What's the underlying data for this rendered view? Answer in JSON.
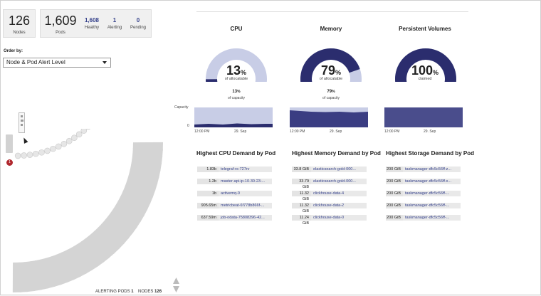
{
  "stats": {
    "nodes": {
      "value": "126",
      "label": "Nodes"
    },
    "pods": {
      "value": "1,609",
      "label": "Pods"
    },
    "healthy": {
      "value": "1,608",
      "label": "Healthy"
    },
    "alerting": {
      "value": "1",
      "label": "Alerting"
    },
    "pending": {
      "value": "0",
      "label": "Pending"
    }
  },
  "order": {
    "label": "Order by:",
    "selected": "Node & Pod Alert Level"
  },
  "gauges": [
    {
      "title": "CPU",
      "value": "13",
      "unit": "%",
      "sublabel": "of allocatable",
      "fraction": 0.13,
      "capacity_value": "13",
      "capacity_unit": "%",
      "capacity_label": "of capacity"
    },
    {
      "title": "Memory",
      "value": "79",
      "unit": "%",
      "sublabel": "of allocatable",
      "fraction": 0.79,
      "capacity_value": "79",
      "capacity_unit": "%",
      "capacity_label": "of capacity"
    },
    {
      "title": "Persistent Volumes",
      "value": "100",
      "unit": "%",
      "sublabel": "claimed",
      "fraction": 1.0
    }
  ],
  "sparklines": {
    "y_label": "Capacity",
    "y_zero": "0",
    "x_ticks": [
      "12:00 PM",
      "29. Sep"
    ]
  },
  "demand": {
    "cpu": {
      "title": "Highest CPU Demand by Pod",
      "rows": [
        {
          "value": "1.83b",
          "name": "telegraf-rs-727rv"
        },
        {
          "value": "1.2b",
          "name": "master-api-ip-10-30-23-..."
        },
        {
          "value": "1b",
          "name": "activemq-0"
        },
        {
          "value": "905.65m",
          "name": "metricbeat-6f778b866f-..."
        },
        {
          "value": "637.59m",
          "name": "job-odata-75808396-42..."
        }
      ]
    },
    "memory": {
      "title": "Highest Memory Demand by Pod",
      "rows": [
        {
          "value": "33.8 GiB",
          "name": "elasticsearch-gold-000..."
        },
        {
          "value": "33.79 GiB",
          "name": "elasticsearch-gold-000..."
        },
        {
          "value": "11.32 GiB",
          "name": "clickhouse-data-4"
        },
        {
          "value": "11.32 GiB",
          "name": "clickhouse-data-2"
        },
        {
          "value": "11.24 GiB",
          "name": "clickhouse-data-0"
        }
      ]
    },
    "storage": {
      "title": "Highest Storage Demand by Pod",
      "rows": [
        {
          "value": "200 GiB",
          "name": "taskmanager-dfc5c56ff-z..."
        },
        {
          "value": "200 GiB",
          "name": "taskmanager-dfc5c56ff-x..."
        },
        {
          "value": "200 GiB",
          "name": "taskmanager-dfc5c56ff-..."
        },
        {
          "value": "200 GiB",
          "name": "taskmanager-dfc5c56ff-..."
        },
        {
          "value": "200 GiB",
          "name": "taskmanager-dfc5c56ff-..."
        }
      ]
    }
  },
  "alert_badge": "1",
  "footer": {
    "alerting_label": "ALERTING PODS",
    "alerting_value": "1",
    "nodes_label": "NODES",
    "nodes_value": "126"
  },
  "colors": {
    "accent": "#2b2d6e",
    "light": "#c8cde6",
    "link": "#34408a",
    "alert": "#b0282e"
  },
  "icons": {
    "dropdown": "chevron-down-icon",
    "cursor": "mouse-pointer-icon",
    "scroll": "scroll-arrows-icon"
  }
}
